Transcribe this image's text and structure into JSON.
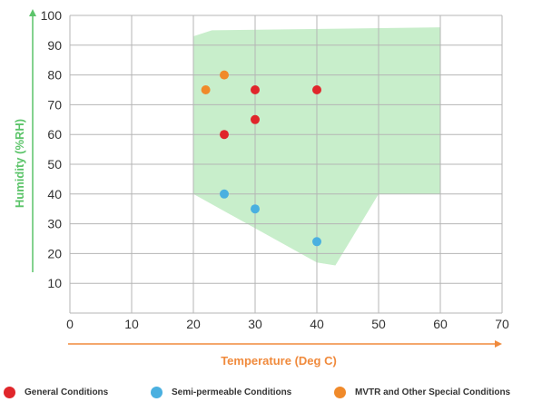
{
  "chart_data": {
    "type": "scatter",
    "xlabel": "Temperature (Deg C)",
    "ylabel": "Humidity (%RH)",
    "xlim": [
      0,
      70
    ],
    "ylim": [
      0,
      100
    ],
    "xticks": [
      0,
      10,
      20,
      30,
      40,
      50,
      60,
      70
    ],
    "yticks": [
      10,
      20,
      30,
      40,
      50,
      60,
      70,
      80,
      90,
      100
    ],
    "grid": true,
    "region": {
      "color": "#c8eecb",
      "polygon": [
        [
          20,
          93
        ],
        [
          23,
          95
        ],
        [
          60,
          96
        ],
        [
          60,
          40
        ],
        [
          50,
          40
        ],
        [
          43,
          16
        ],
        [
          40,
          17
        ],
        [
          20,
          40
        ]
      ]
    },
    "series": [
      {
        "name": "General Conditions",
        "color": "#e0262b",
        "points": [
          [
            25,
            60
          ],
          [
            30,
            65
          ],
          [
            30,
            75
          ],
          [
            40,
            75
          ]
        ]
      },
      {
        "name": "Semi-permeable Conditions",
        "color": "#4ab0e0",
        "points": [
          [
            25,
            40
          ],
          [
            30,
            35
          ],
          [
            40,
            24
          ]
        ]
      },
      {
        "name": "MVTR and Other Special Conditions",
        "color": "#f08a2a",
        "points": [
          [
            22,
            75
          ],
          [
            25,
            80
          ]
        ]
      }
    ],
    "legend_position": "bottom",
    "x_axis_color": "#f08a3c",
    "y_axis_color": "#5cc46a"
  }
}
